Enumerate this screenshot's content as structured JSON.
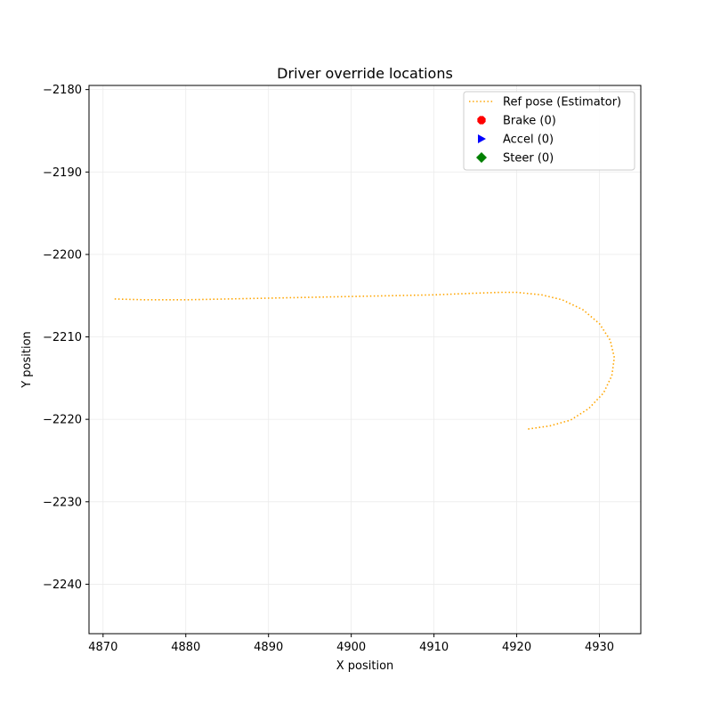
{
  "chart_data": {
    "type": "line",
    "title": "Driver override locations",
    "xlabel": "X position",
    "ylabel": "Y position",
    "xlim": [
      4868.3,
      4935
    ],
    "ylim": [
      -2246,
      -2179.5
    ],
    "xticks": [
      4870,
      4880,
      4890,
      4900,
      4910,
      4920,
      4930
    ],
    "yticks": [
      -2180,
      -2190,
      -2200,
      -2210,
      -2220,
      -2230,
      -2240
    ],
    "grid": true,
    "legend_position": "top-right",
    "series": [
      {
        "name": "Ref pose (Estimator)",
        "style": "dotted-line",
        "color": "#ffa500",
        "points": [
          [
            4871.4,
            -2205.4
          ],
          [
            4875,
            -2205.5
          ],
          [
            4880,
            -2205.5
          ],
          [
            4885,
            -2205.4
          ],
          [
            4890,
            -2205.3
          ],
          [
            4895,
            -2205.2
          ],
          [
            4900,
            -2205.1
          ],
          [
            4905,
            -2205.0
          ],
          [
            4910,
            -2204.9
          ],
          [
            4915,
            -2204.7
          ],
          [
            4918,
            -2204.6
          ],
          [
            4920,
            -2204.6
          ],
          [
            4923,
            -2204.9
          ],
          [
            4925.5,
            -2205.5
          ],
          [
            4928,
            -2206.7
          ],
          [
            4930,
            -2208.4
          ],
          [
            4931.3,
            -2210.4
          ],
          [
            4931.8,
            -2212.5
          ],
          [
            4931.5,
            -2214.7
          ],
          [
            4930.5,
            -2216.8
          ],
          [
            4928.7,
            -2218.7
          ],
          [
            4926.5,
            -2220.1
          ],
          [
            4924,
            -2220.8
          ],
          [
            4921.2,
            -2221.2
          ]
        ]
      },
      {
        "name": "Brake (0)",
        "style": "marker",
        "marker": "octagon",
        "color": "#ff0000",
        "points": []
      },
      {
        "name": "Accel (0)",
        "style": "marker",
        "marker": "triangle-right",
        "color": "#0000ff",
        "points": []
      },
      {
        "name": "Steer (0)",
        "style": "marker",
        "marker": "diamond",
        "color": "#008000",
        "points": []
      }
    ]
  }
}
